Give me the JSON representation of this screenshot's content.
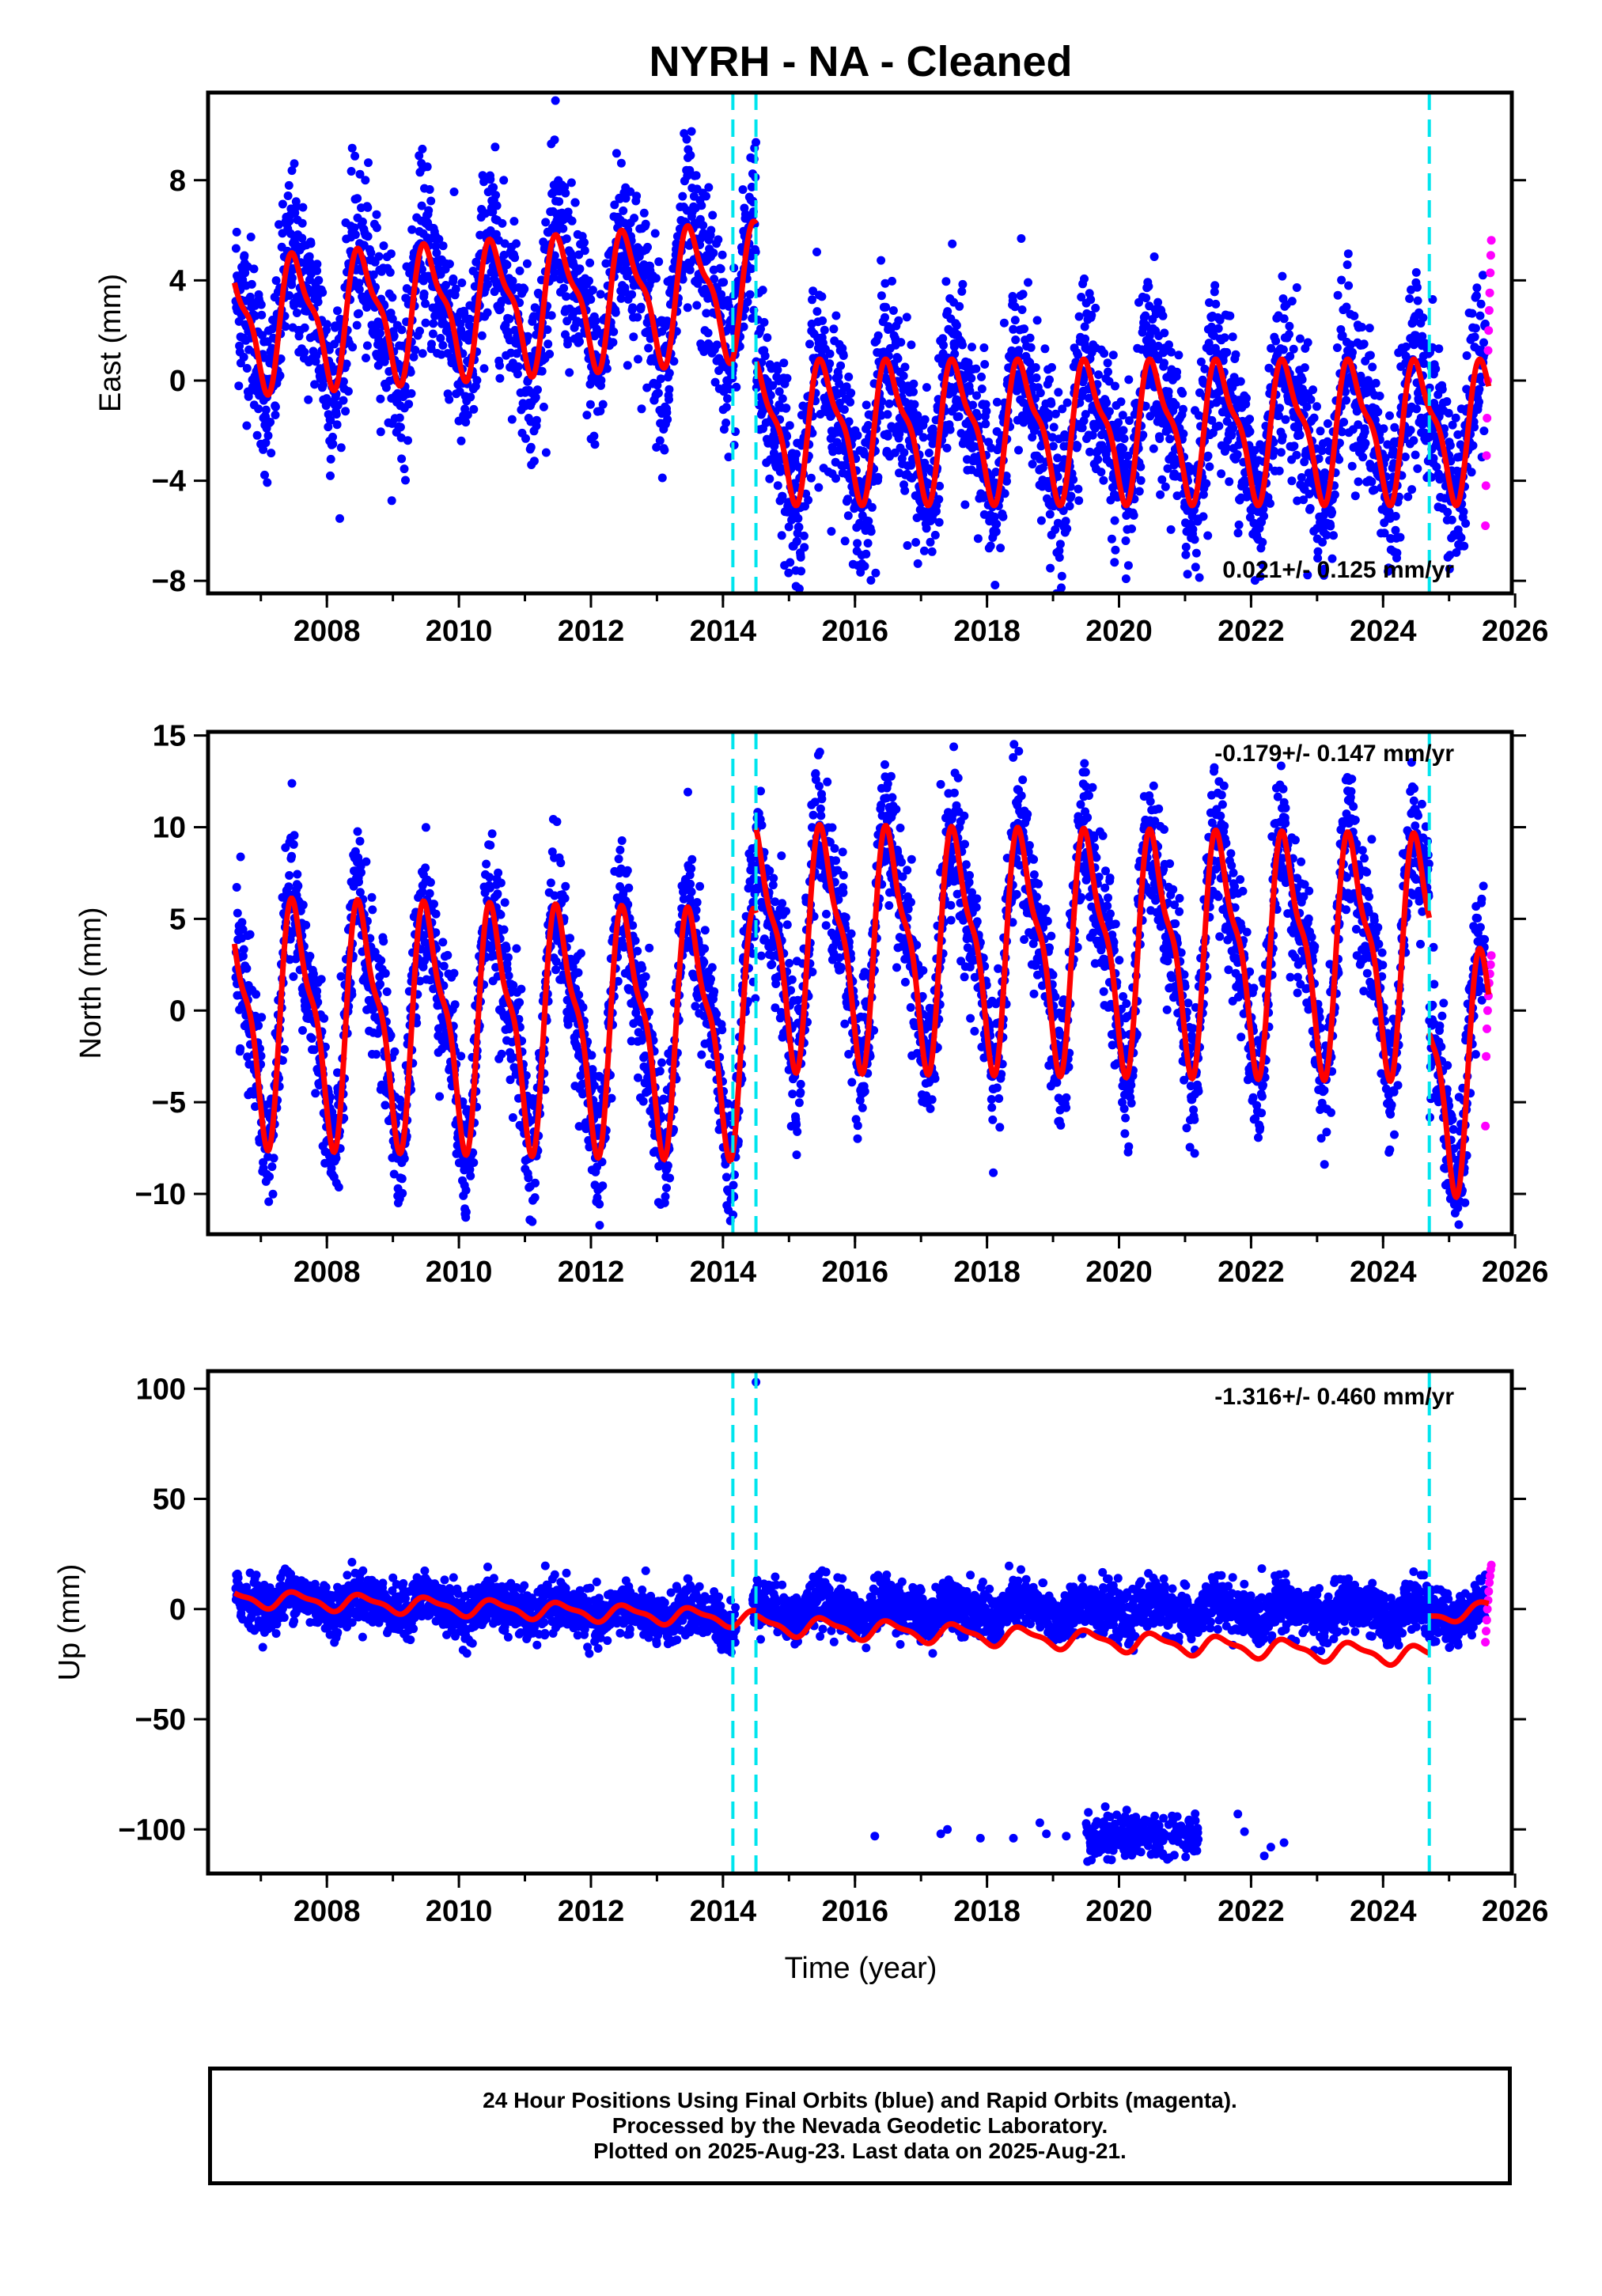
{
  "title": "NYRH  - NA - Cleaned",
  "xlabel": "Time (year)",
  "footer": {
    "line1": "24 Hour Positions Using Final Orbits (blue) and Rapid Orbits (magenta).",
    "line2": "Processed by the Nevada Geodetic Laboratory.",
    "line3": "Plotted on 2025-Aug-23. Last data on 2025-Aug-21."
  },
  "colors": {
    "final_orbits": "#0000ff",
    "rapid_orbits": "#ff00ff",
    "model_fit": "#ff0000",
    "offset_lines": "#00e5ee"
  },
  "chart_data": [
    {
      "type": "scatter",
      "panel": "east",
      "ylabel": "East (mm)",
      "xlim": [
        2006.2,
        2025.95
      ],
      "ylim": [
        -8.5,
        11.5
      ],
      "xticks": [
        2008,
        2010,
        2012,
        2014,
        2016,
        2018,
        2020,
        2022,
        2024,
        2026
      ],
      "yticks": [
        -8,
        -4,
        0,
        4,
        8
      ],
      "rate_label": "0.021+/- 0.125 mm/yr",
      "offset_lines_x": [
        2014.15,
        2014.5,
        2024.7
      ],
      "model": {
        "segments": [
          {
            "x0": 2006.6,
            "x1": 2014.5,
            "base": 2.3,
            "trend": 0.18,
            "amp": 2.4
          },
          {
            "x0": 2014.5,
            "x1": 2025.6,
            "base": -1.9,
            "trend": 0.0,
            "amp": 2.5
          }
        ]
      },
      "scatter_noise": 1.7,
      "rapid_points": {
        "x0": 2025.55,
        "x1": 2025.64,
        "y": [
          -5.8,
          -4.2,
          -3.0,
          -1.5,
          0.0,
          1.2,
          2.0,
          2.8,
          3.5,
          4.3,
          5.0,
          5.6
        ]
      }
    },
    {
      "type": "scatter",
      "panel": "north",
      "ylabel": "North (mm)",
      "xlim": [
        2006.2,
        2025.95
      ],
      "ylim": [
        -12.2,
        15.2
      ],
      "xticks": [
        2008,
        2010,
        2012,
        2014,
        2016,
        2018,
        2020,
        2022,
        2024,
        2026
      ],
      "yticks": [
        -10,
        -5,
        0,
        5,
        10,
        15
      ],
      "rate_label": "-0.179+/- 0.147 mm/yr",
      "offset_lines_x": [
        2014.15,
        2014.5,
        2024.7
      ],
      "model": {
        "segments": [
          {
            "x0": 2006.6,
            "x1": 2014.5,
            "base": -0.3,
            "trend": -0.08,
            "amp": 5.9
          },
          {
            "x0": 2014.5,
            "x1": 2024.7,
            "base": 3.8,
            "trend": -0.05,
            "amp": 5.8
          },
          {
            "x0": 2024.7,
            "x1": 2025.6,
            "base": -3.0,
            "trend": 0.0,
            "amp": 5.8
          }
        ]
      },
      "scatter_noise": 1.9,
      "rapid_points": {
        "x0": 2025.55,
        "x1": 2025.64,
        "y": [
          -6.3,
          -2.5,
          -1.0,
          0.0,
          0.8,
          1.5,
          2.0,
          2.5,
          3.0
        ]
      }
    },
    {
      "type": "scatter",
      "panel": "up",
      "ylabel": "Up (mm)",
      "xlim": [
        2006.2,
        2025.95
      ],
      "ylim": [
        -120,
        108
      ],
      "xticks": [
        2008,
        2010,
        2012,
        2014,
        2016,
        2018,
        2020,
        2022,
        2024,
        2026
      ],
      "yticks": [
        -100,
        -50,
        0,
        50,
        100
      ],
      "rate_label": "-1.316+/- 0.460 mm/yr",
      "offset_lines_x": [
        2014.15,
        2014.5,
        2024.7
      ],
      "model": {
        "segments": [
          {
            "x0": 2006.6,
            "x1": 2014.5,
            "base": 5.0,
            "trend": -1.2,
            "amp": 3.5
          },
          {
            "x0": 2014.5,
            "x1": 2024.7,
            "base": -7.0,
            "trend": -1.4,
            "amp": 4.0
          },
          {
            "x0": 2024.7,
            "x1": 2025.6,
            "base": -4.0,
            "trend": 5.0,
            "amp": 3.0
          }
        ]
      },
      "scatter_noise": 5.5,
      "outlier_cluster": {
        "x0": 2019.5,
        "x1": 2021.2,
        "y_center": -103,
        "spread": 5
      },
      "outliers": [
        [
          2014.5,
          103
        ],
        [
          2016.3,
          -103
        ],
        [
          2017.3,
          -102
        ],
        [
          2017.4,
          -100
        ],
        [
          2017.9,
          -104
        ],
        [
          2018.4,
          -104
        ],
        [
          2018.8,
          -97
        ],
        [
          2018.9,
          -102
        ],
        [
          2019.2,
          -103
        ],
        [
          2021.8,
          -93
        ],
        [
          2021.9,
          -101
        ],
        [
          2022.2,
          -112
        ],
        [
          2022.3,
          -108
        ],
        [
          2022.5,
          -106
        ]
      ],
      "rapid_points": {
        "x0": 2025.55,
        "x1": 2025.64,
        "y": [
          -15,
          -10,
          -5,
          0,
          4,
          8,
          12,
          15,
          18,
          20
        ]
      }
    }
  ]
}
